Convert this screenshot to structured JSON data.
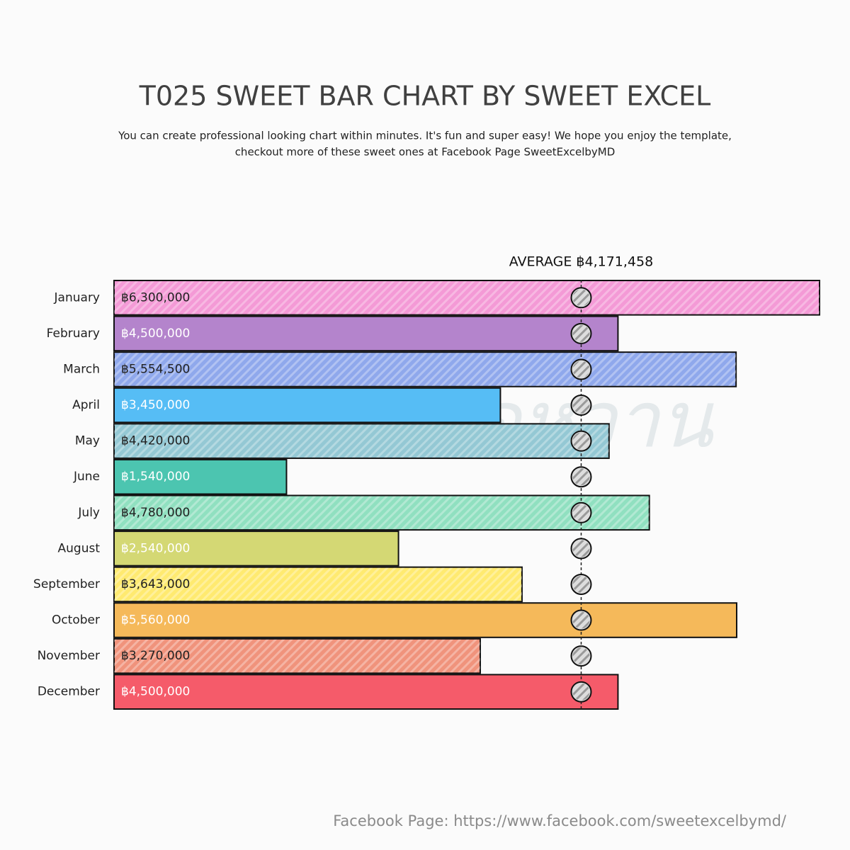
{
  "chart_data": {
    "type": "bar",
    "orientation": "horizontal",
    "title": "T025 SWEET BAR CHART BY SWEET EXCEL",
    "subtitle": [
      "You can create professional looking chart within minutes. It's fun and super easy! We hope you enjoy the template,",
      "checkout more of these sweet ones at Facebook Page SweetExcelbyMD"
    ],
    "categories": [
      "January",
      "February",
      "March",
      "April",
      "May",
      "June",
      "July",
      "August",
      "September",
      "October",
      "November",
      "December"
    ],
    "values": [
      6300000,
      4500000,
      5554500,
      3450000,
      4420000,
      1540000,
      4780000,
      2540000,
      3643000,
      5560000,
      3270000,
      4500000
    ],
    "value_labels": [
      "฿6,300,000",
      "฿4,500,000",
      "฿5,554,500",
      "฿3,450,000",
      "฿4,420,000",
      "฿1,540,000",
      "฿4,780,000",
      "฿2,540,000",
      "฿3,643,000",
      "฿5,560,000",
      "฿3,270,000",
      "฿4,500,000"
    ],
    "colors": [
      "#f49ad6",
      "#b484cc",
      "#8fa8ec",
      "#56bdf5",
      "#94c8d4",
      "#4cc5b0",
      "#90e0c0",
      "#d4d874",
      "#ffea70",
      "#f5b95a",
      "#f0937c",
      "#f55b6a"
    ],
    "average": {
      "value": 4171458,
      "label": "AVERAGE ฿4,171,458"
    },
    "xlim": [
      0,
      6300000
    ],
    "watermark": "Excelชาดหวาน",
    "footer": "Facebook Page: https://www.facebook.com/sweetexcelbymd/"
  }
}
